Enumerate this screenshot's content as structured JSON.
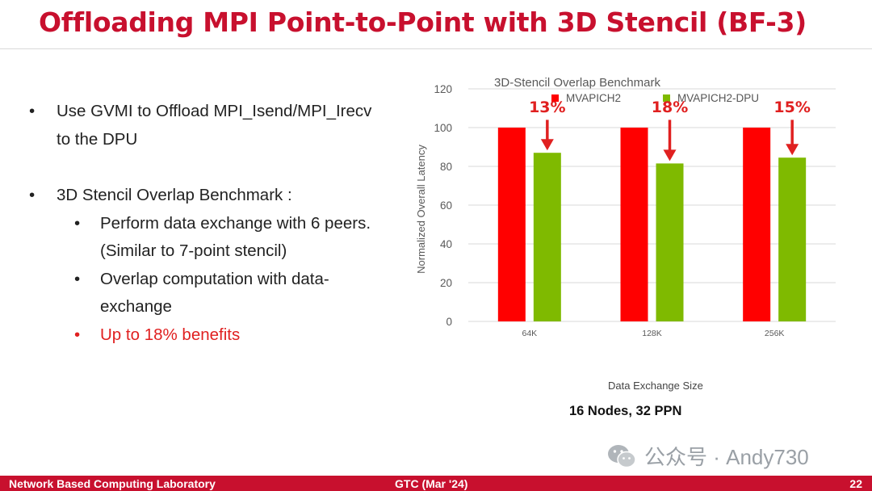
{
  "slide": {
    "title": "Offloading MPI Point-to-Point with 3D Stencil (BF-3)",
    "bullets": [
      "Use GVMI to Offload MPI_Isend/MPI_Irecv to the DPU",
      "3D Stencil Overlap Benchmark :"
    ],
    "sub_bullets": [
      "Perform data exchange with 6 peers. (Similar to 7-point stencil)",
      "Overlap computation with data-exchange",
      "Up to 18% benefits"
    ],
    "caption": "16 Nodes, 32 PPN"
  },
  "chart_data": {
    "type": "bar",
    "title": "3D-Stencil Overlap Benchmark",
    "xlabel": "Data Exchange Size",
    "ylabel": "Normalized Overall Latency",
    "categories": [
      "64K",
      "128K",
      "256K"
    ],
    "series": [
      {
        "name": "MVAPICH2",
        "values": [
          100,
          100,
          100
        ],
        "color": "#ff0000"
      },
      {
        "name": "MVAPICH2-DPU",
        "values": [
          87,
          81.5,
          84.5
        ],
        "color": "#7fba00"
      }
    ],
    "annotations": [
      "13%",
      "18%",
      "15%"
    ],
    "ylim": [
      0,
      120
    ],
    "yticks": [
      0,
      20,
      40,
      60,
      80,
      100,
      120
    ],
    "grid": true,
    "legend": "top"
  },
  "footer": {
    "lab": "Network Based Computing Laboratory",
    "conference": "GTC (Mar '24)",
    "page": "22"
  },
  "watermark": {
    "text": "公众号 · Andy730",
    "icon": "wechat-icon"
  }
}
